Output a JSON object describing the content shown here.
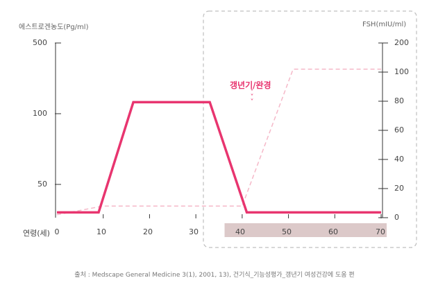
{
  "chart_data": {
    "type": "line",
    "left_axis_label": "에스트로겐농도(Pg/ml)",
    "right_axis_label": "FSH(mIU/ml)",
    "x_axis_label": "연령(세)",
    "x_ticks": [
      "0",
      "10",
      "20",
      "30",
      "40",
      "50",
      "60",
      "70"
    ],
    "left_y_ticks": [
      "500",
      "100",
      "50"
    ],
    "right_y_ticks": [
      "200",
      "100",
      "80",
      "60",
      "40",
      "20",
      "0"
    ],
    "xlim": [
      0,
      70
    ],
    "left_ylim_scale": "log",
    "right_ylim": [
      0,
      200
    ],
    "series": [
      {
        "axis": "left",
        "color": "#e8356f",
        "style": "solid",
        "x": [
          0,
          9,
          16.5,
          33,
          41,
          70
        ],
        "y": [
          38,
          38,
          130,
          130,
          38,
          38
        ]
      },
      {
        "axis": "right",
        "color": "#f5b8c8",
        "style": "dashed",
        "x": [
          0,
          10,
          40,
          51,
          70
        ],
        "y": [
          2,
          8,
          8,
          110,
          110
        ]
      }
    ],
    "annotation": {
      "text": "갱년기/완경",
      "x": 42,
      "chevrons": "˅˅˅"
    },
    "highlight": {
      "x_range": [
        38,
        70
      ]
    }
  },
  "source": "출처 : Medscape General Medicine 3(1), 2001, 13), 건기식_기능성평가_갱년기 여성건강에 도움 편",
  "colors": {
    "estrogen_line": "#e8356f",
    "fsh_line": "#f5b8c8",
    "highlight_band": "#dcc9c9",
    "dashed_box": "#bfbfbf"
  }
}
